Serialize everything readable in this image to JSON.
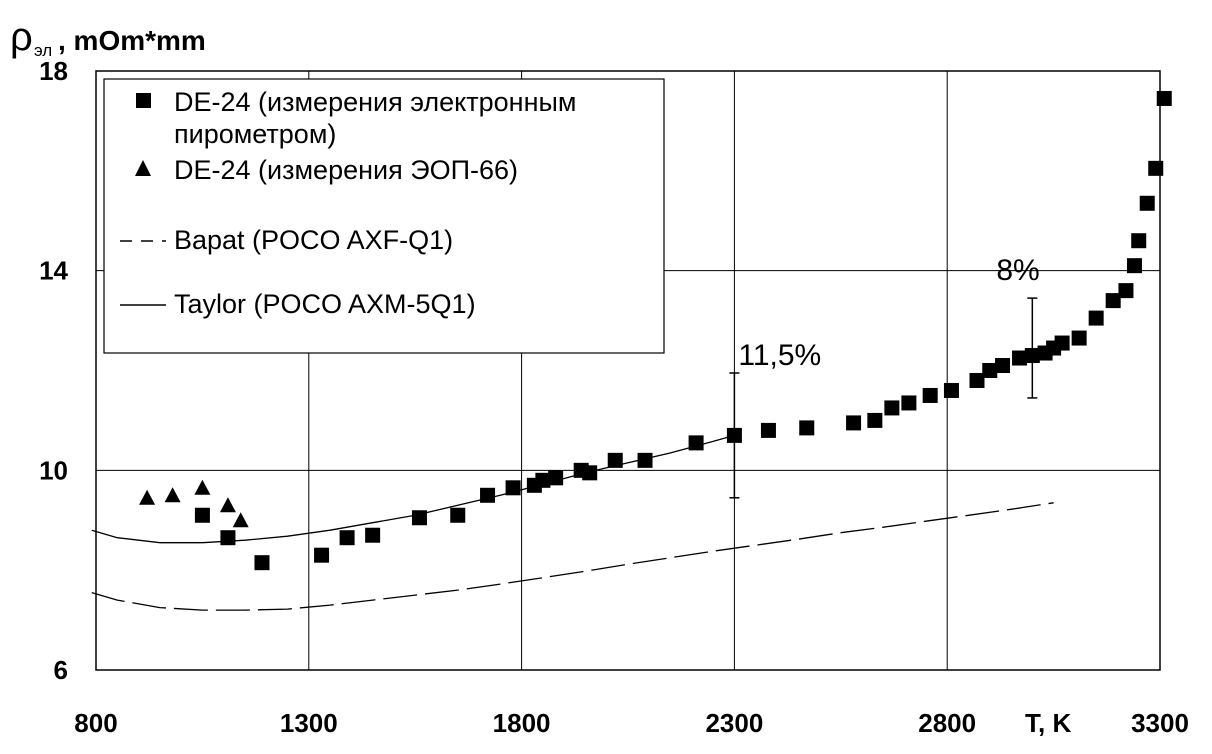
{
  "chart_data": {
    "type": "scatter",
    "title": "",
    "ylabel_main": "ρ",
    "ylabel_sub": "эл",
    "ylabel_rest": ", mOm*mm",
    "xlabel": "T, K",
    "xlim": [
      800,
      3300
    ],
    "ylim": [
      6,
      18
    ],
    "xticks": [
      "800",
      "1300",
      "1800",
      "2300",
      "2800",
      "3300"
    ],
    "yticks": [
      "6",
      "10",
      "14",
      "18"
    ],
    "grid": true,
    "legend_position": "top-left",
    "legend": [
      "DE-24 (измерения электронным",
      "пирометром)",
      "DE-24 (измерения ЭОП-66)",
      "Bapat (POCO AXF-Q1)",
      "Taylor (POCO AXM-5Q1)"
    ],
    "series": [
      {
        "name": "DE-24 (измерения электронным пирометром)",
        "marker": "square",
        "x": [
          1050,
          1110,
          1190,
          1330,
          1390,
          1450,
          1560,
          1650,
          1720,
          1780,
          1830,
          1850,
          1880,
          1940,
          1960,
          2020,
          2090,
          2210,
          2300,
          2380,
          2470,
          2580,
          2630,
          2670,
          2710,
          2760,
          2810,
          2870,
          2900,
          2930,
          2970,
          3000,
          3030,
          3050,
          3070,
          3110,
          3150,
          3190,
          3220,
          3240,
          3250,
          3270,
          3290,
          3310
        ],
        "y": [
          9.1,
          8.65,
          8.15,
          8.3,
          8.65,
          8.7,
          9.05,
          9.1,
          9.5,
          9.65,
          9.7,
          9.8,
          9.85,
          10.0,
          9.95,
          10.2,
          10.2,
          10.55,
          10.7,
          10.8,
          10.85,
          10.95,
          11.0,
          11.25,
          11.35,
          11.5,
          11.6,
          11.8,
          12.0,
          12.1,
          12.25,
          12.3,
          12.35,
          12.45,
          12.55,
          12.65,
          13.05,
          13.4,
          13.6,
          14.1,
          14.6,
          15.35,
          16.05,
          17.45
        ]
      },
      {
        "name": "DE-24 (измерения ЭОП-66)",
        "marker": "triangle",
        "x": [
          920,
          980,
          1050,
          1110,
          1140
        ],
        "y": [
          9.45,
          9.5,
          9.65,
          9.3,
          9.0
        ]
      },
      {
        "name": "Bapat (POCO AXF-Q1)",
        "line": "dashed",
        "x": [
          790,
          850,
          950,
          1050,
          1150,
          1250,
          1350,
          1450,
          1550,
          1650,
          1750,
          1850,
          1950,
          2050,
          2150,
          2250,
          2350,
          2450,
          2550,
          2650,
          2750,
          2850,
          2950,
          3050
        ],
        "y": [
          7.55,
          7.4,
          7.25,
          7.2,
          7.2,
          7.22,
          7.3,
          7.4,
          7.5,
          7.6,
          7.72,
          7.85,
          7.98,
          8.12,
          8.25,
          8.38,
          8.5,
          8.62,
          8.75,
          8.86,
          8.98,
          9.1,
          9.22,
          9.35
        ]
      },
      {
        "name": "Taylor (POCO AXM-5Q1)",
        "line": "solid",
        "x": [
          790,
          850,
          950,
          1050,
          1150,
          1250,
          1350,
          1450,
          1550,
          1650,
          1750,
          1850,
          1950,
          2050,
          2150,
          2250,
          2300
        ],
        "y": [
          8.8,
          8.65,
          8.55,
          8.55,
          8.6,
          8.68,
          8.8,
          8.95,
          9.1,
          9.3,
          9.5,
          9.72,
          9.95,
          10.15,
          10.35,
          10.58,
          10.7
        ]
      }
    ],
    "error_bars": [
      {
        "x": 2300,
        "y_low": 9.45,
        "y_high": 11.95,
        "label": "11,5%"
      },
      {
        "x": 3000,
        "y_low": 11.45,
        "y_high": 13.45,
        "label": "8%"
      }
    ]
  }
}
